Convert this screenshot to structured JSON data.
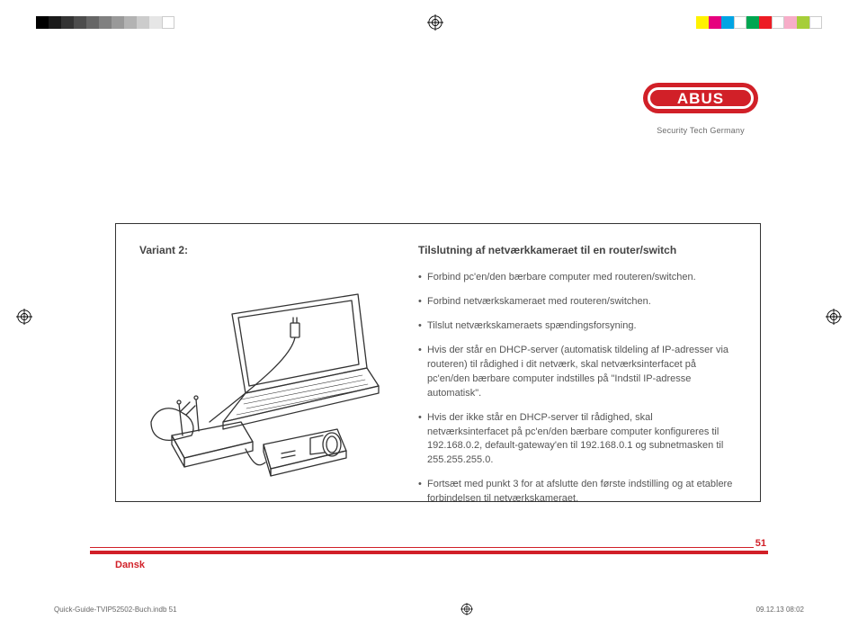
{
  "registration": {
    "gray_ramp": [
      "#000000",
      "#1a1a1a",
      "#333333",
      "#4d4d4d",
      "#666666",
      "#808080",
      "#999999",
      "#b3b3b3",
      "#cccccc",
      "#e6e6e6",
      "#ffffff"
    ],
    "color_swatches": [
      "#fff200",
      "#e6007e",
      "#00a4e4",
      "#ffffff",
      "#00a651",
      "#ed1c24",
      "#ffffff",
      "#f7adc8",
      "#a6ce39",
      "#ffffff"
    ]
  },
  "logo": {
    "tagline": "Security Tech Germany",
    "brand_color": "#d12028",
    "text": "ABUS"
  },
  "content": {
    "variant_label": "Variant 2:",
    "heading": "Tilslutning af netværkkameraet til en router/switch",
    "bullets": [
      "Forbind pc'en/den bærbare computer med routeren/switchen.",
      "Forbind netværkskameraet med routeren/switchen.",
      "Tilslut netværkskameraets spændingsforsyning.",
      "Hvis der står en DHCP-server (automatisk tildeling af IP-adresser via routeren) til rådighed i dit netværk, skal netværksinterfacet på pc'en/den bærbare computer indstilles på \"Indstil IP-adresse automatisk\".",
      "Hvis der ikke står en DHCP-server til rådighed, skal netværksinterfacet på pc'en/den bærbare computer konfigureres til 192.168.0.2, default-gateway'en til 192.168.0.1 og subnetmasken til 255.255.255.0.",
      "Fortsæt med punkt 3 for at afslutte den første indstilling og at etablere forbindelsen til netværkskameraet."
    ]
  },
  "footer": {
    "page_number": "51",
    "language": "Dansk",
    "accent_color": "#d12028"
  },
  "print_meta": {
    "filename": "Quick-Guide-TVIP52502-Buch.indb   51",
    "datetime": "09.12.13   08:02"
  }
}
